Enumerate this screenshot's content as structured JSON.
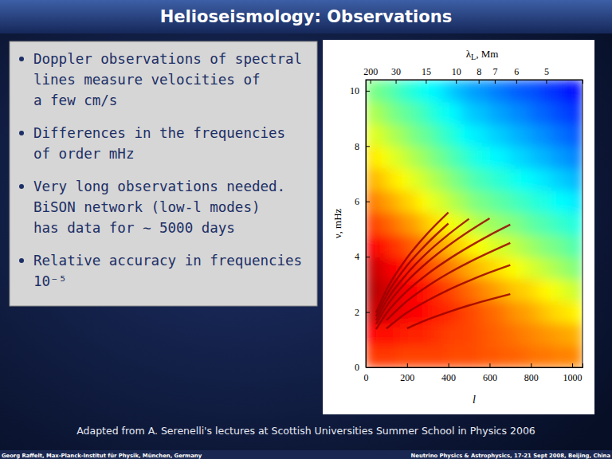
{
  "title": "Helioseismology: Observations",
  "bullets": [
    [
      "Doppler observations of spectral",
      "lines measure velocities of",
      "a few cm/s"
    ],
    [
      "Differences in the frequencies",
      "of order mHz"
    ],
    [
      "Very long observations needed.",
      "BiSON network (low-l modes)",
      "has data for ∼ 5000 days"
    ],
    [
      "Relative accuracy in frequencies",
      "10⁻⁵"
    ]
  ],
  "caption": "Adapted from A. Serenelli's lectures at Scottish Universities Summer School in Physics 2006",
  "footer": {
    "left": "Georg Raffelt, Max-Planck-Institut für Physik, München, Germany",
    "right": "Neutrino Physics & Astrophysics, 17-21 Sept 2008, Beijing, China"
  },
  "chart_data": {
    "type": "heatmap",
    "xlabel": "l",
    "ylabel": "ν, mHz",
    "x2label": "λL, Mm",
    "xlim": [
      0,
      1050
    ],
    "ylim": [
      0,
      10.4
    ],
    "xticks": [
      0,
      200,
      400,
      600,
      800,
      1000
    ],
    "yticks": [
      0,
      2,
      4,
      6,
      8,
      10
    ],
    "x2ticks": [
      {
        "value": 22,
        "label": "200"
      },
      {
        "value": 145,
        "label": "30"
      },
      {
        "value": 291,
        "label": "15"
      },
      {
        "value": 437,
        "label": "10"
      },
      {
        "value": 547,
        "label": "8"
      },
      {
        "value": 625,
        "label": "7"
      },
      {
        "value": 729,
        "label": "6"
      },
      {
        "value": 874,
        "label": "5"
      }
    ],
    "zlim": [
      0,
      1
    ],
    "x_edges": [
      0,
      50,
      100,
      150,
      200,
      250,
      300,
      350,
      400,
      450,
      500,
      550,
      600,
      650,
      700,
      750,
      800,
      850,
      900,
      950,
      1000,
      1050
    ],
    "y_edges": [
      0,
      0.8,
      1.6,
      2.4,
      3.2,
      4.0,
      4.8,
      5.6,
      6.4,
      7.2,
      8.0,
      8.8,
      9.6,
      10.4
    ],
    "cells": [
      [
        0.82,
        0.82,
        0.82,
        0.81,
        0.81,
        0.81,
        0.81,
        0.81,
        0.8,
        0.8,
        0.8,
        0.79,
        0.79,
        0.78,
        0.78,
        0.77,
        0.76,
        0.76,
        0.75,
        0.75,
        0.74
      ],
      [
        0.87,
        0.86,
        0.86,
        0.85,
        0.84,
        0.84,
        0.83,
        0.82,
        0.81,
        0.81,
        0.8,
        0.79,
        0.78,
        0.77,
        0.76,
        0.75,
        0.74,
        0.73,
        0.72,
        0.71,
        0.7
      ],
      [
        0.93,
        0.92,
        0.9,
        0.89,
        0.88,
        0.87,
        0.85,
        0.84,
        0.83,
        0.81,
        0.8,
        0.78,
        0.77,
        0.75,
        0.73,
        0.72,
        0.7,
        0.68,
        0.66,
        0.65,
        0.63
      ],
      [
        0.95,
        0.93,
        0.91,
        0.89,
        0.87,
        0.86,
        0.84,
        0.82,
        0.8,
        0.78,
        0.76,
        0.74,
        0.72,
        0.7,
        0.68,
        0.67,
        0.65,
        0.63,
        0.61,
        0.59,
        0.57
      ],
      [
        0.93,
        0.91,
        0.88,
        0.86,
        0.84,
        0.82,
        0.79,
        0.77,
        0.75,
        0.72,
        0.7,
        0.68,
        0.66,
        0.64,
        0.62,
        0.6,
        0.58,
        0.56,
        0.54,
        0.52,
        0.5
      ],
      [
        0.88,
        0.86,
        0.83,
        0.81,
        0.78,
        0.76,
        0.73,
        0.71,
        0.68,
        0.66,
        0.63,
        0.61,
        0.59,
        0.58,
        0.56,
        0.54,
        0.52,
        0.5,
        0.49,
        0.47,
        0.45
      ],
      [
        0.82,
        0.79,
        0.77,
        0.74,
        0.72,
        0.69,
        0.66,
        0.64,
        0.61,
        0.59,
        0.56,
        0.54,
        0.53,
        0.51,
        0.5,
        0.48,
        0.46,
        0.45,
        0.43,
        0.42,
        0.4
      ],
      [
        0.76,
        0.73,
        0.71,
        0.68,
        0.66,
        0.63,
        0.6,
        0.58,
        0.55,
        0.53,
        0.5,
        0.49,
        0.47,
        0.46,
        0.44,
        0.43,
        0.41,
        0.4,
        0.38,
        0.37,
        0.35
      ],
      [
        0.7,
        0.68,
        0.65,
        0.63,
        0.6,
        0.58,
        0.55,
        0.53,
        0.5,
        0.48,
        0.45,
        0.44,
        0.42,
        0.41,
        0.39,
        0.38,
        0.36,
        0.35,
        0.33,
        0.32,
        0.3
      ],
      [
        0.65,
        0.63,
        0.6,
        0.58,
        0.55,
        0.53,
        0.5,
        0.48,
        0.45,
        0.43,
        0.4,
        0.39,
        0.37,
        0.36,
        0.34,
        0.33,
        0.31,
        0.3,
        0.28,
        0.27,
        0.25
      ],
      [
        0.6,
        0.58,
        0.55,
        0.53,
        0.5,
        0.48,
        0.46,
        0.43,
        0.41,
        0.38,
        0.36,
        0.35,
        0.33,
        0.32,
        0.3,
        0.29,
        0.27,
        0.26,
        0.24,
        0.23,
        0.21
      ],
      [
        0.55,
        0.53,
        0.5,
        0.48,
        0.46,
        0.44,
        0.41,
        0.39,
        0.37,
        0.34,
        0.32,
        0.31,
        0.29,
        0.28,
        0.26,
        0.25,
        0.23,
        0.22,
        0.2,
        0.19,
        0.17
      ],
      [
        0.5,
        0.48,
        0.46,
        0.43,
        0.41,
        0.39,
        0.37,
        0.35,
        0.32,
        0.3,
        0.28,
        0.27,
        0.25,
        0.24,
        0.22,
        0.21,
        0.2,
        0.18,
        0.17,
        0.15,
        0.14
      ]
    ],
    "series": [
      {
        "color": "#9a0000",
        "x": [
          200,
          300,
          400,
          500,
          600,
          700
        ],
        "values": [
          1.41,
          1.73,
          2.0,
          2.24,
          2.45,
          2.65
        ]
      },
      {
        "color": "#9a0000",
        "x": [
          100,
          200,
          300,
          400,
          500,
          600,
          700
        ],
        "values": [
          1.4,
          1.98,
          2.42,
          2.8,
          3.13,
          3.43,
          3.7
        ]
      },
      {
        "color": "#9a0000",
        "x": [
          100,
          200,
          300,
          400,
          500,
          600,
          700
        ],
        "values": [
          1.7,
          2.4,
          2.94,
          3.4,
          3.8,
          4.16,
          4.5
        ]
      },
      {
        "color": "#9a0000",
        "x": [
          50,
          100,
          200,
          300,
          400,
          500,
          600,
          700
        ],
        "values": [
          1.38,
          1.95,
          2.76,
          3.38,
          3.9,
          4.36,
          4.78,
          5.16
        ]
      },
      {
        "color": "#9a0000",
        "x": [
          50,
          100,
          200,
          300,
          400,
          500,
          600
        ],
        "values": [
          1.56,
          2.2,
          3.11,
          3.81,
          4.4,
          4.92,
          5.39
        ]
      },
      {
        "color": "#9a0000",
        "x": [
          50,
          100,
          200,
          300,
          400,
          500
        ],
        "values": [
          1.7,
          2.4,
          3.39,
          4.16,
          4.8,
          5.37
        ]
      },
      {
        "color": "#9a0000",
        "x": [
          50,
          100,
          200,
          300,
          400
        ],
        "values": [
          1.84,
          2.6,
          3.68,
          4.5,
          5.2
        ]
      },
      {
        "color": "#9a0000",
        "x": [
          50,
          100,
          200,
          300,
          400
        ],
        "values": [
          1.98,
          2.8,
          3.96,
          4.85,
          5.6
        ]
      }
    ]
  }
}
